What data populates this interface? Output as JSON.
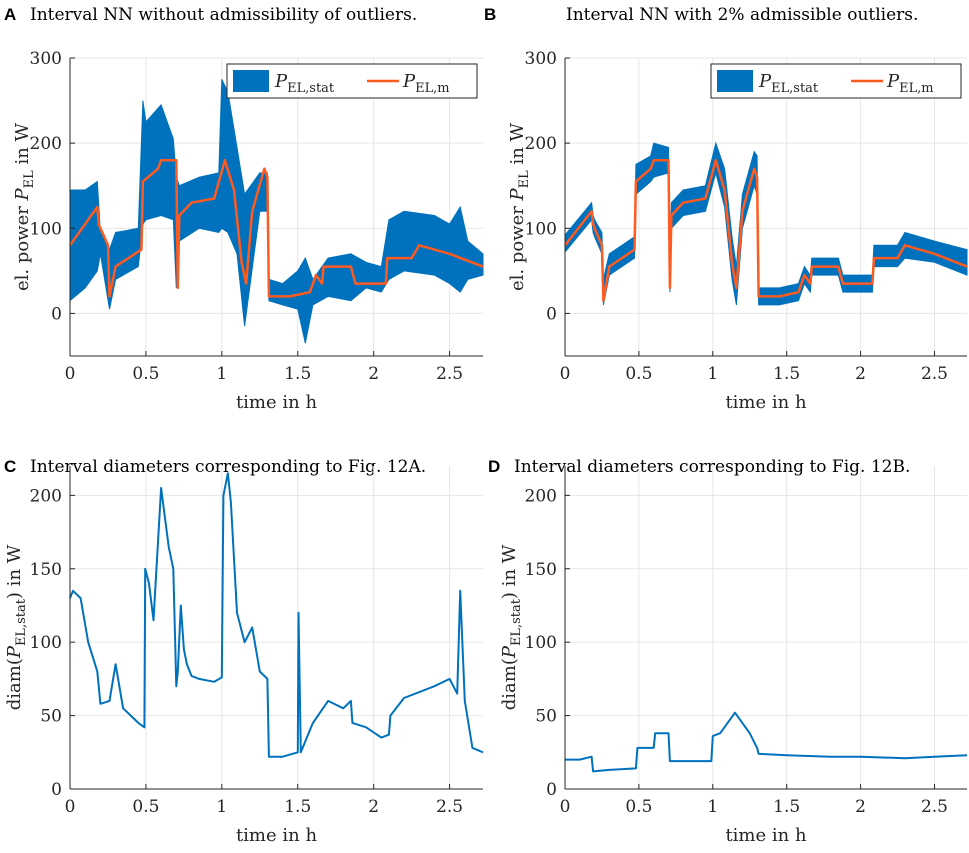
{
  "figure": {
    "panels": [
      {
        "label": "A",
        "title": "Interval NN without admissibility of outliers."
      },
      {
        "label": "B",
        "title": "Interval NN with 2% admissible outliers."
      },
      {
        "label": "C",
        "title": "Interval diameters corresponding to Fig. 12A."
      },
      {
        "label": "D",
        "title": "Interval diameters corresponding to Fig. 12B."
      }
    ]
  },
  "colors": {
    "interval": "#0072BD",
    "measured": "#FF5A1F",
    "grid": "#e6e6e6",
    "axis": "#262626"
  },
  "chart_data": [
    {
      "type": "area",
      "panel": "A",
      "title": "Interval NN without admissibility of outliers.",
      "xlabel": "time in h",
      "ylabel": "el. power P_EL in W",
      "xlim": [
        0,
        2.72
      ],
      "ylim": [
        -50,
        300
      ],
      "xticks": [
        0,
        0.5,
        1,
        1.5,
        2,
        2.5
      ],
      "xtick_labels": [
        "0",
        "0.5",
        "1",
        "1.5",
        "2",
        "2.5"
      ],
      "yticks": [
        0,
        100,
        200,
        300
      ],
      "ytick_labels": [
        "0",
        "100",
        "200",
        "300"
      ],
      "legend": {
        "position": "top-right",
        "entries": [
          "P_EL,stat",
          "P_EL,m"
        ]
      },
      "series": [
        {
          "name": "P_EL,stat upper",
          "x": [
            0,
            0.1,
            0.18,
            0.2,
            0.26,
            0.3,
            0.45,
            0.48,
            0.5,
            0.6,
            0.68,
            0.7,
            0.72,
            0.85,
            0.98,
            1.0,
            1.04,
            1.1,
            1.15,
            1.25,
            1.3,
            1.31,
            1.4,
            1.5,
            1.55,
            1.6,
            1.7,
            1.85,
            1.95,
            2.05,
            2.1,
            2.2,
            2.4,
            2.5,
            2.57,
            2.62,
            2.72
          ],
          "values": [
            145,
            145,
            155,
            95,
            75,
            95,
            100,
            250,
            225,
            245,
            205,
            160,
            150,
            160,
            165,
            275,
            260,
            195,
            140,
            165,
            165,
            40,
            35,
            50,
            65,
            40,
            65,
            70,
            60,
            55,
            110,
            120,
            115,
            105,
            125,
            85,
            70
          ]
        },
        {
          "name": "P_EL,stat lower",
          "x": [
            0,
            0.1,
            0.18,
            0.2,
            0.26,
            0.3,
            0.45,
            0.48,
            0.5,
            0.6,
            0.68,
            0.7,
            0.72,
            0.85,
            0.98,
            1.0,
            1.04,
            1.1,
            1.15,
            1.25,
            1.3,
            1.31,
            1.4,
            1.5,
            1.55,
            1.6,
            1.7,
            1.85,
            1.95,
            2.05,
            2.1,
            2.2,
            2.4,
            2.5,
            2.57,
            2.62,
            2.72
          ],
          "values": [
            15,
            30,
            50,
            70,
            5,
            40,
            55,
            105,
            110,
            115,
            110,
            30,
            85,
            100,
            95,
            100,
            95,
            70,
            -15,
            120,
            120,
            15,
            10,
            5,
            -35,
            10,
            20,
            15,
            30,
            25,
            40,
            50,
            45,
            35,
            25,
            40,
            45
          ]
        },
        {
          "name": "P_EL,m",
          "x": [
            0,
            0.18,
            0.19,
            0.2,
            0.25,
            0.26,
            0.3,
            0.47,
            0.48,
            0.58,
            0.6,
            0.7,
            0.71,
            0.72,
            0.8,
            0.95,
            1.02,
            1.08,
            1.13,
            1.16,
            1.2,
            1.28,
            1.3,
            1.31,
            1.45,
            1.58,
            1.62,
            1.66,
            1.67,
            1.85,
            1.88,
            2.08,
            2.09,
            2.25,
            2.3,
            2.5,
            2.72
          ],
          "values": [
            80,
            125,
            105,
            100,
            80,
            20,
            55,
            75,
            155,
            170,
            180,
            180,
            30,
            115,
            130,
            135,
            180,
            145,
            60,
            35,
            120,
            170,
            160,
            20,
            20,
            25,
            45,
            35,
            55,
            55,
            35,
            35,
            65,
            65,
            80,
            70,
            55
          ]
        }
      ]
    },
    {
      "type": "area",
      "panel": "B",
      "title": "Interval NN with 2% admissible outliers.",
      "xlabel": "time in h",
      "ylabel": "el. power P_EL in W",
      "xlim": [
        0,
        2.72
      ],
      "ylim": [
        -50,
        300
      ],
      "xticks": [
        0,
        0.5,
        1,
        1.5,
        2,
        2.5
      ],
      "xtick_labels": [
        "0",
        "0.5",
        "1",
        "1.5",
        "2",
        "2.5"
      ],
      "yticks": [
        0,
        100,
        200,
        300
      ],
      "ytick_labels": [
        "0",
        "100",
        "200",
        "300"
      ],
      "legend": {
        "position": "top-right",
        "entries": [
          "P_EL,stat",
          "P_EL,m"
        ]
      },
      "series": [
        {
          "name": "P_EL,stat upper",
          "x": [
            0,
            0.18,
            0.19,
            0.2,
            0.25,
            0.26,
            0.3,
            0.47,
            0.48,
            0.58,
            0.6,
            0.7,
            0.71,
            0.72,
            0.8,
            0.95,
            1.02,
            1.08,
            1.13,
            1.16,
            1.2,
            1.28,
            1.3,
            1.31,
            1.45,
            1.58,
            1.62,
            1.66,
            1.67,
            1.85,
            1.88,
            2.08,
            2.09,
            2.25,
            2.3,
            2.5,
            2.72
          ],
          "values": [
            92,
            130,
            115,
            110,
            95,
            40,
            70,
            90,
            175,
            185,
            200,
            195,
            70,
            130,
            145,
            150,
            200,
            170,
            90,
            55,
            140,
            190,
            185,
            30,
            30,
            35,
            55,
            45,
            65,
            65,
            45,
            45,
            80,
            80,
            95,
            85,
            75
          ]
        },
        {
          "name": "P_EL,stat lower",
          "x": [
            0,
            0.18,
            0.19,
            0.2,
            0.25,
            0.26,
            0.3,
            0.47,
            0.48,
            0.58,
            0.6,
            0.7,
            0.71,
            0.72,
            0.8,
            0.95,
            1.02,
            1.08,
            1.13,
            1.16,
            1.2,
            1.28,
            1.3,
            1.31,
            1.45,
            1.58,
            1.62,
            1.66,
            1.67,
            1.85,
            1.88,
            2.08,
            2.09,
            2.25,
            2.3,
            2.5,
            2.72
          ],
          "values": [
            72,
            110,
            95,
            90,
            70,
            10,
            45,
            65,
            140,
            155,
            160,
            165,
            25,
            100,
            115,
            120,
            165,
            125,
            40,
            10,
            100,
            150,
            140,
            10,
            10,
            15,
            35,
            25,
            45,
            45,
            25,
            25,
            55,
            55,
            65,
            60,
            45
          ]
        },
        {
          "name": "P_EL,m",
          "x": [
            0,
            0.18,
            0.19,
            0.2,
            0.25,
            0.26,
            0.3,
            0.47,
            0.48,
            0.58,
            0.6,
            0.7,
            0.71,
            0.72,
            0.8,
            0.95,
            1.02,
            1.08,
            1.13,
            1.16,
            1.2,
            1.28,
            1.3,
            1.31,
            1.45,
            1.58,
            1.62,
            1.66,
            1.67,
            1.85,
            1.88,
            2.08,
            2.09,
            2.25,
            2.3,
            2.5,
            2.72
          ],
          "values": [
            80,
            120,
            105,
            100,
            80,
            15,
            55,
            75,
            155,
            170,
            180,
            180,
            30,
            115,
            130,
            135,
            180,
            145,
            60,
            30,
            120,
            170,
            160,
            20,
            20,
            25,
            45,
            35,
            55,
            55,
            35,
            35,
            65,
            65,
            80,
            70,
            55
          ]
        }
      ]
    },
    {
      "type": "line",
      "panel": "C",
      "title": "Interval diameters corresponding to Fig. 12A.",
      "xlabel": "time in h",
      "ylabel": "diam(P_EL,stat) in W",
      "xlim": [
        0,
        2.72
      ],
      "ylim": [
        0,
        220
      ],
      "xticks": [
        0,
        0.5,
        1,
        1.5,
        2,
        2.5
      ],
      "xtick_labels": [
        "0",
        "0.5",
        "1",
        "1.5",
        "2",
        "2.5"
      ],
      "yticks": [
        0,
        50,
        100,
        150,
        200
      ],
      "ytick_labels": [
        "0",
        "50",
        "100",
        "150",
        "200"
      ],
      "series": [
        {
          "name": "diam",
          "x": [
            0,
            0.02,
            0.07,
            0.12,
            0.18,
            0.2,
            0.26,
            0.3,
            0.35,
            0.45,
            0.49,
            0.495,
            0.52,
            0.55,
            0.6,
            0.65,
            0.68,
            0.7,
            0.71,
            0.73,
            0.75,
            0.77,
            0.8,
            0.85,
            0.95,
            1.0,
            1.01,
            1.04,
            1.06,
            1.1,
            1.15,
            1.2,
            1.25,
            1.3,
            1.31,
            1.4,
            1.5,
            1.505,
            1.52,
            1.6,
            1.7,
            1.8,
            1.85,
            1.86,
            1.95,
            2.05,
            2.1,
            2.11,
            2.2,
            2.4,
            2.5,
            2.55,
            2.57,
            2.6,
            2.65,
            2.72
          ],
          "values": [
            130,
            135,
            130,
            100,
            80,
            58,
            60,
            85,
            55,
            45,
            42,
            150,
            140,
            115,
            205,
            165,
            150,
            70,
            80,
            125,
            95,
            85,
            77,
            75,
            73,
            76,
            200,
            215,
            195,
            120,
            100,
            110,
            80,
            75,
            22,
            22,
            25,
            120,
            25,
            45,
            60,
            55,
            60,
            45,
            42,
            35,
            37,
            50,
            62,
            70,
            75,
            65,
            135,
            60,
            28,
            25
          ]
        }
      ]
    },
    {
      "type": "line",
      "panel": "D",
      "title": "Interval diameters corresponding to Fig. 12B.",
      "xlabel": "time in h",
      "ylabel": "diam(P_EL,stat) in W",
      "xlim": [
        0,
        2.72
      ],
      "ylim": [
        0,
        220
      ],
      "xticks": [
        0,
        0.5,
        1,
        1.5,
        2,
        2.5
      ],
      "xtick_labels": [
        "0",
        "0.5",
        "1",
        "1.5",
        "2",
        "2.5"
      ],
      "yticks": [
        0,
        50,
        100,
        150,
        200
      ],
      "ytick_labels": [
        "0",
        "50",
        "100",
        "150",
        "200"
      ],
      "series": [
        {
          "name": "diam",
          "x": [
            0,
            0.1,
            0.18,
            0.19,
            0.3,
            0.48,
            0.49,
            0.6,
            0.61,
            0.7,
            0.71,
            0.8,
            0.99,
            1.0,
            1.05,
            1.15,
            1.25,
            1.3,
            1.31,
            1.5,
            1.8,
            2.0,
            2.3,
            2.5,
            2.72
          ],
          "values": [
            20,
            20,
            22,
            12,
            13,
            14,
            28,
            28,
            38,
            38,
            19,
            19,
            19,
            36,
            38,
            52,
            38,
            28,
            24,
            23,
            22,
            22,
            21,
            22,
            23
          ]
        }
      ]
    }
  ]
}
